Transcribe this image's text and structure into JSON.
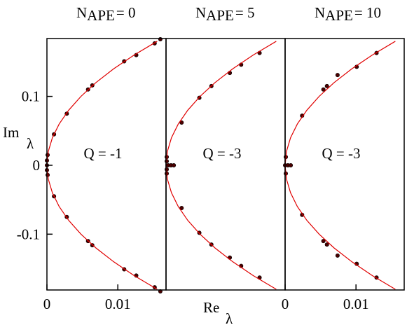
{
  "chart_data": [
    {
      "type": "scatter",
      "title": {
        "base": "N",
        "subscript": "APE",
        "rest": "= 0"
      },
      "annotation": "Q = -1",
      "ylabel": {
        "base": "Im",
        "subscript": "λ"
      },
      "xlim": [
        0,
        0.0168
      ],
      "ylim": [
        -0.181,
        0.184
      ],
      "xticks": [
        0,
        0.01
      ],
      "yticks": [
        -0.1,
        0,
        0.1
      ],
      "series": [
        {
          "color": "#4a0000",
          "x": [
            0.0001,
            0,
            0,
            0,
            0.0001,
            0.001,
            0.0028,
            0.0058,
            0.0064,
            0.0109,
            0.0126,
            0.0152,
            0.016,
            0.001,
            0.0028,
            0.0058,
            0.0064,
            0.0109,
            0.0126,
            0.0152,
            0.016
          ],
          "values": [
            0.015,
            0.007,
            0,
            -0.007,
            -0.014,
            0.045,
            0.075,
            0.11,
            0.116,
            0.151,
            0.16,
            0.177,
            0.183,
            -0.045,
            -0.075,
            -0.11,
            -0.116,
            -0.151,
            -0.16,
            -0.177,
            -0.183
          ]
        },
        {
          "color": "#e00000",
          "line": true,
          "x": [
            0.01555,
            0.01229,
            0.00941,
            0.00691,
            0.0048,
            0.00307,
            0.00173,
            0.00077,
            0.00019,
            0,
            0.00019,
            0.00077,
            0.00173,
            0.00307,
            0.0048,
            0.00691,
            0.00941,
            0.01229,
            0.01555
          ],
          "values": [
            -0.18,
            -0.16,
            -0.14,
            -0.12,
            -0.1,
            -0.08,
            -0.06,
            -0.04,
            -0.02,
            0,
            0.02,
            0.04,
            0.06,
            0.08,
            0.1,
            0.12,
            0.14,
            0.16,
            0.18
          ]
        }
      ]
    },
    {
      "type": "scatter",
      "title": {
        "base": "N",
        "subscript": "APE",
        "rest": "= 5"
      },
      "annotation": "Q = -3",
      "xlabel": {
        "base": "Re",
        "subscript": "λ"
      },
      "xlim": [
        0,
        0.0168
      ],
      "ylim": [
        -0.181,
        0.184
      ],
      "series": [
        {
          "color": "#4a0000",
          "x": [
            0.0001,
            0.0001,
            0.0003,
            0.0007,
            0.0011,
            0.0001,
            0.0001,
            0.0022,
            0.0047,
            0.0064,
            0.009,
            0.0106,
            0.0132,
            0.0022,
            0.0047,
            0.0064,
            0.009,
            0.0106,
            0.0132
          ],
          "values": [
            0.012,
            0.006,
            0,
            0,
            0,
            -0.006,
            -0.012,
            0.062,
            0.098,
            0.115,
            0.134,
            0.146,
            0.163,
            -0.062,
            -0.098,
            -0.115,
            -0.134,
            -0.146,
            -0.163
          ]
        },
        {
          "color": "#e00000",
          "line": true,
          "x": [
            0.01555,
            0.01229,
            0.00941,
            0.00691,
            0.0048,
            0.00307,
            0.00173,
            0.00077,
            0.00019,
            0,
            0.00019,
            0.00077,
            0.00173,
            0.00307,
            0.0048,
            0.00691,
            0.00941,
            0.01229,
            0.01555
          ],
          "values": [
            -0.18,
            -0.16,
            -0.14,
            -0.12,
            -0.1,
            -0.08,
            -0.06,
            -0.04,
            -0.02,
            0,
            0.02,
            0.04,
            0.06,
            0.08,
            0.1,
            0.12,
            0.14,
            0.16,
            0.18
          ]
        }
      ]
    },
    {
      "type": "scatter",
      "title": {
        "base": "N",
        "subscript": "APE",
        "rest": "= 10"
      },
      "annotation": "Q = -3",
      "xlim": [
        0,
        0.0168
      ],
      "ylim": [
        -0.181,
        0.184
      ],
      "xticks": [
        0,
        0.01
      ],
      "series": [
        {
          "color": "#4a0000",
          "x": [
            0.0001,
            0,
            0.0004,
            0.0008,
            0.0001,
            0.0024,
            0.0054,
            0.0059,
            0.0074,
            0.0101,
            0.0129,
            0.0024,
            0.0054,
            0.0059,
            0.0074,
            0.0101,
            0.0129
          ],
          "values": [
            0.012,
            0,
            0,
            0,
            -0.012,
            0.072,
            0.11,
            0.115,
            0.131,
            0.143,
            0.163,
            -0.072,
            -0.11,
            -0.115,
            -0.131,
            -0.143,
            -0.163
          ]
        },
        {
          "color": "#e00000",
          "line": true,
          "x": [
            0.01555,
            0.01229,
            0.00941,
            0.00691,
            0.0048,
            0.00307,
            0.00173,
            0.00077,
            0.00019,
            0,
            0.00019,
            0.00077,
            0.00173,
            0.00307,
            0.0048,
            0.00691,
            0.00941,
            0.01229,
            0.01555
          ],
          "values": [
            -0.18,
            -0.16,
            -0.14,
            -0.12,
            -0.1,
            -0.08,
            -0.06,
            -0.04,
            -0.02,
            0,
            0.02,
            0.04,
            0.06,
            0.08,
            0.1,
            0.12,
            0.14,
            0.16,
            0.18
          ]
        }
      ]
    }
  ]
}
